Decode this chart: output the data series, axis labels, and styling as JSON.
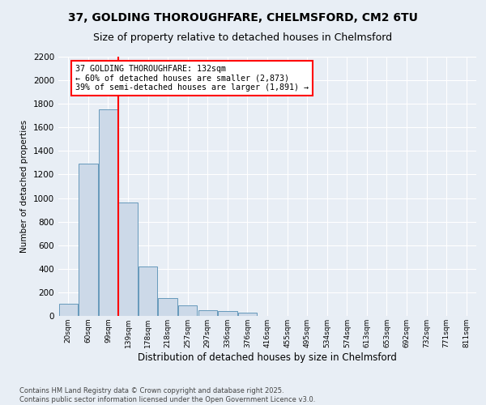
{
  "title_line1": "37, GOLDING THOROUGHFARE, CHELMSFORD, CM2 6TU",
  "title_line2": "Size of property relative to detached houses in Chelmsford",
  "xlabel": "Distribution of detached houses by size in Chelmsford",
  "ylabel": "Number of detached properties",
  "annotation_line1": "37 GOLDING THOROUGHFARE: 132sqm",
  "annotation_line2": "← 60% of detached houses are smaller (2,873)",
  "annotation_line3": "39% of semi-detached houses are larger (1,891) →",
  "footer_line1": "Contains HM Land Registry data © Crown copyright and database right 2025.",
  "footer_line2": "Contains public sector information licensed under the Open Government Licence v3.0.",
  "bin_labels": [
    "20sqm",
    "60sqm",
    "99sqm",
    "139sqm",
    "178sqm",
    "218sqm",
    "257sqm",
    "297sqm",
    "336sqm",
    "376sqm",
    "416sqm",
    "455sqm",
    "495sqm",
    "534sqm",
    "574sqm",
    "613sqm",
    "653sqm",
    "692sqm",
    "732sqm",
    "771sqm",
    "811sqm"
  ],
  "bar_values": [
    100,
    1290,
    1750,
    960,
    420,
    150,
    90,
    50,
    40,
    30,
    0,
    0,
    0,
    0,
    0,
    0,
    0,
    0,
    0,
    0,
    0
  ],
  "bar_color": "#ccd9e8",
  "bar_edge_color": "#6699bb",
  "vline_color": "red",
  "annotation_box_color": "red",
  "background_color": "#e8eef5",
  "ylim": [
    0,
    2200
  ],
  "yticks": [
    0,
    200,
    400,
    600,
    800,
    1000,
    1200,
    1400,
    1600,
    1800,
    2000,
    2200
  ],
  "grid_color": "white",
  "title_fontsize": 10,
  "subtitle_fontsize": 9
}
